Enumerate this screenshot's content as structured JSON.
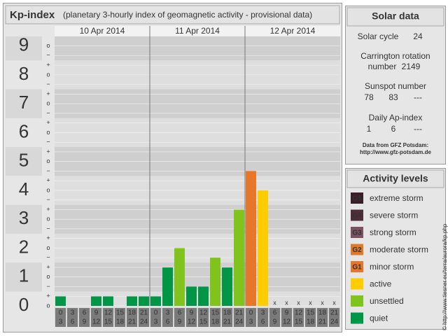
{
  "chart_data": {
    "type": "bar",
    "title": "Kp-index",
    "subtitle": "(planetary 3-hourly index of geomagnetic activity - provisional data)",
    "days": [
      "10 Apr 2014",
      "11 Apr 2014",
      "12 Apr 2014"
    ],
    "hours_from": [
      0,
      3,
      6,
      9,
      12,
      15,
      18,
      21
    ],
    "hours_to": [
      3,
      6,
      9,
      12,
      15,
      18,
      21,
      24
    ],
    "values": [
      0.33,
      0,
      0,
      0.33,
      0.33,
      0,
      0.33,
      0.33,
      0.33,
      1.33,
      2,
      0.67,
      0.67,
      1.67,
      1.33,
      3.33,
      4.67,
      4,
      null,
      null,
      null,
      null,
      null,
      null
    ],
    "colors": [
      "#009645",
      "#009645",
      "#009645",
      "#009645",
      "#009645",
      "#009645",
      "#009645",
      "#009645",
      "#009645",
      "#009645",
      "#80c31c",
      "#009645",
      "#009645",
      "#80c31c",
      "#009645",
      "#80c31c",
      "#e8762a",
      "#ffcc00",
      null,
      null,
      null,
      null,
      null,
      null
    ],
    "missing_label": "x",
    "ylim": [
      0,
      9.33
    ],
    "yticks": [
      0,
      1,
      2,
      3,
      4,
      5,
      6,
      7,
      8,
      9
    ],
    "subtick_labels": {
      "minus": "−",
      "zero": "o",
      "plus": "+"
    },
    "legend_title": "Activity levels",
    "legend": [
      {
        "badge": "G5",
        "name": "extreme storm",
        "color": "#3a1f29"
      },
      {
        "badge": "G4",
        "name": "severe storm",
        "color": "#4e2d3a"
      },
      {
        "badge": "G3",
        "name": "strong storm",
        "color": "#7b5262"
      },
      {
        "badge": "G2",
        "name": "moderate storm",
        "color": "#e07a2a"
      },
      {
        "badge": "G1",
        "name": "minor storm",
        "color": "#e8762a"
      },
      {
        "name": "active",
        "color": "#ffcc00"
      },
      {
        "name": "unsettled",
        "color": "#80c31c"
      },
      {
        "name": "quiet",
        "color": "#009645"
      }
    ]
  },
  "solar_panel": {
    "title": "Solar data",
    "cycle_label": "Solar cycle",
    "cycle": 24,
    "carrington_label": "Carrington rotation",
    "carrington_label2": "number",
    "carrington": 2149,
    "sunspot_label": "Sunspot number",
    "sunspot": [
      78,
      83,
      "---"
    ],
    "ap_label": "Daily Ap-index",
    "ap": [
      1,
      6,
      "---"
    ],
    "source": "Data from GFZ Potsdam:",
    "source_url": "http://www.gfz-potsdam.de"
  },
  "watermark": "© http://www.tiesner.eu/terra/aurora/kp.php"
}
